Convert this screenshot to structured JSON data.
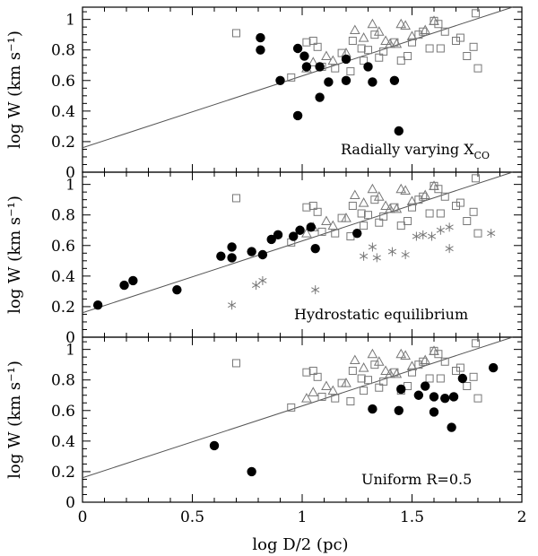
{
  "chart_data": {
    "type": "scatter",
    "xlabel": "log D/2 (pc)",
    "x_ticks": [
      "0",
      "0.5",
      "1",
      "1.5",
      "2"
    ],
    "xlim": [
      0,
      2
    ],
    "ylabel": "log W (km s⁻¹)",
    "y_ticks": [
      "0",
      "0.2",
      "0.4",
      "0.6",
      "0.8",
      "1"
    ],
    "ylim": [
      0,
      1.08
    ],
    "fit_line": {
      "intercept": 0.16,
      "slope": 0.47
    },
    "comparison_series": {
      "squares": [
        [
          0.7,
          0.91
        ],
        [
          1.02,
          0.85
        ],
        [
          1.05,
          0.86
        ],
        [
          1.07,
          0.82
        ],
        [
          1.09,
          0.69
        ],
        [
          0.95,
          0.62
        ],
        [
          1.15,
          0.68
        ],
        [
          1.18,
          0.78
        ],
        [
          1.22,
          0.66
        ],
        [
          1.23,
          0.86
        ],
        [
          1.27,
          0.81
        ],
        [
          1.28,
          0.73
        ],
        [
          1.3,
          0.8
        ],
        [
          1.33,
          0.9
        ],
        [
          1.35,
          0.75
        ],
        [
          1.37,
          0.79
        ],
        [
          1.42,
          0.85
        ],
        [
          1.45,
          0.73
        ],
        [
          1.48,
          0.76
        ],
        [
          1.5,
          0.85
        ],
        [
          1.53,
          0.9
        ],
        [
          1.55,
          0.92
        ],
        [
          1.58,
          0.81
        ],
        [
          1.6,
          0.99
        ],
        [
          1.62,
          0.97
        ],
        [
          1.63,
          0.81
        ],
        [
          1.65,
          0.92
        ],
        [
          1.7,
          0.86
        ],
        [
          1.72,
          0.88
        ],
        [
          1.75,
          0.76
        ],
        [
          1.78,
          0.82
        ],
        [
          1.79,
          1.04
        ],
        [
          1.8,
          0.68
        ]
      ],
      "triangles": [
        [
          1.02,
          0.68
        ],
        [
          1.05,
          0.72
        ],
        [
          1.11,
          0.76
        ],
        [
          1.14,
          0.73
        ],
        [
          1.2,
          0.78
        ],
        [
          1.24,
          0.93
        ],
        [
          1.28,
          0.88
        ],
        [
          1.32,
          0.97
        ],
        [
          1.35,
          0.92
        ],
        [
          1.38,
          0.86
        ],
        [
          1.4,
          0.84
        ],
        [
          1.43,
          0.84
        ],
        [
          1.45,
          0.97
        ],
        [
          1.47,
          0.96
        ],
        [
          1.5,
          0.89
        ],
        [
          1.56,
          0.93
        ],
        [
          1.6,
          0.99
        ]
      ]
    },
    "panels": [
      {
        "label": "Radially varying X",
        "label_sub": "CO",
        "filled_points": [
          [
            0.81,
            0.88
          ],
          [
            0.81,
            0.8
          ],
          [
            0.9,
            0.6
          ],
          [
            0.98,
            0.81
          ],
          [
            1.01,
            0.76
          ],
          [
            1.02,
            0.69
          ],
          [
            0.98,
            0.37
          ],
          [
            1.08,
            0.49
          ],
          [
            1.12,
            0.59
          ],
          [
            1.08,
            0.69
          ],
          [
            1.2,
            0.74
          ],
          [
            1.2,
            0.6
          ],
          [
            1.3,
            0.69
          ],
          [
            1.32,
            0.59
          ],
          [
            1.42,
            0.6
          ],
          [
            1.44,
            0.27
          ]
        ],
        "stars": []
      },
      {
        "label": "Hydrostatic equilibrium",
        "label_sub": "",
        "filled_points": [
          [
            0.07,
            0.21
          ],
          [
            0.19,
            0.34
          ],
          [
            0.23,
            0.37
          ],
          [
            0.43,
            0.31
          ],
          [
            0.63,
            0.53
          ],
          [
            0.68,
            0.59
          ],
          [
            0.68,
            0.52
          ],
          [
            0.77,
            0.56
          ],
          [
            0.82,
            0.54
          ],
          [
            0.86,
            0.64
          ],
          [
            0.89,
            0.67
          ],
          [
            0.96,
            0.66
          ],
          [
            0.99,
            0.7
          ],
          [
            1.04,
            0.72
          ],
          [
            1.06,
            0.58
          ],
          [
            1.25,
            0.68
          ]
        ],
        "stars": [
          [
            0.68,
            0.21
          ],
          [
            0.79,
            0.34
          ],
          [
            0.82,
            0.37
          ],
          [
            1.06,
            0.31
          ],
          [
            1.28,
            0.53
          ],
          [
            1.32,
            0.59
          ],
          [
            1.34,
            0.52
          ],
          [
            1.41,
            0.56
          ],
          [
            1.47,
            0.54
          ],
          [
            1.52,
            0.66
          ],
          [
            1.55,
            0.67
          ],
          [
            1.59,
            0.66
          ],
          [
            1.63,
            0.7
          ],
          [
            1.67,
            0.72
          ],
          [
            1.67,
            0.58
          ],
          [
            1.86,
            0.68
          ]
        ]
      },
      {
        "label": "Uniform R=0.5",
        "label_sub": "",
        "filled_points": [
          [
            0.6,
            0.37
          ],
          [
            0.77,
            0.2
          ],
          [
            1.32,
            0.61
          ],
          [
            1.44,
            0.6
          ],
          [
            1.45,
            0.74
          ],
          [
            1.53,
            0.7
          ],
          [
            1.56,
            0.76
          ],
          [
            1.6,
            0.69
          ],
          [
            1.6,
            0.59
          ],
          [
            1.65,
            0.68
          ],
          [
            1.69,
            0.69
          ],
          [
            1.68,
            0.49
          ],
          [
            1.73,
            0.81
          ],
          [
            1.87,
            0.88
          ]
        ],
        "stars": []
      }
    ]
  }
}
